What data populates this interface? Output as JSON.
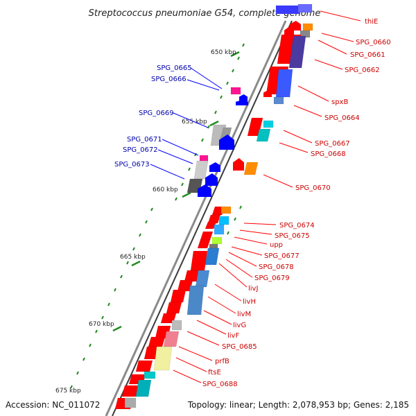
{
  "title": "Streptococcus pneumoniae G54, complete genome",
  "footer": {
    "accession": "Accession: NC_011072",
    "summary": "Topology: linear; Length: 2,078,953 bp; Genes: 2,185"
  },
  "scale_labels": [
    "650 kbp",
    "655 kbp",
    "660 kbp",
    "665 kbp",
    "670 kbp",
    "675 kbp"
  ],
  "colors": {
    "forward": "#ff0000",
    "reverse": "#0000ff",
    "label_forward": "#cc0000",
    "label_reverse": "#0000aa",
    "backbone": "#8a8a8a",
    "tick": "#228b22"
  },
  "genes_reverse": [
    {
      "label": "SPG_0665"
    },
    {
      "label": "SPG_0666"
    },
    {
      "label": "SPG_0669"
    },
    {
      "label": "SPG_0671"
    },
    {
      "label": "SPG_0672"
    },
    {
      "label": "SPG_0673"
    }
  ],
  "genes_forward": [
    {
      "label": "thiE"
    },
    {
      "label": "SPG_0660"
    },
    {
      "label": "SPG_0661"
    },
    {
      "label": "SPG_0662"
    },
    {
      "label": "spxB"
    },
    {
      "label": "SPG_0664"
    },
    {
      "label": "SPG_0667"
    },
    {
      "label": "SPG_0668"
    },
    {
      "label": "SPG_0670"
    },
    {
      "label": "SPG_0674"
    },
    {
      "label": "SPG_0675"
    },
    {
      "label": "upp"
    },
    {
      "label": "SPG_0677"
    },
    {
      "label": "SPG_0678"
    },
    {
      "label": "SPG_0679"
    },
    {
      "label": "livJ"
    },
    {
      "label": "livH"
    },
    {
      "label": "livM"
    },
    {
      "label": "livG"
    },
    {
      "label": "livF"
    },
    {
      "label": "SPG_0685"
    },
    {
      "label": "prfB"
    },
    {
      "label": "ftsE"
    },
    {
      "label": "SPG_0688"
    }
  ]
}
